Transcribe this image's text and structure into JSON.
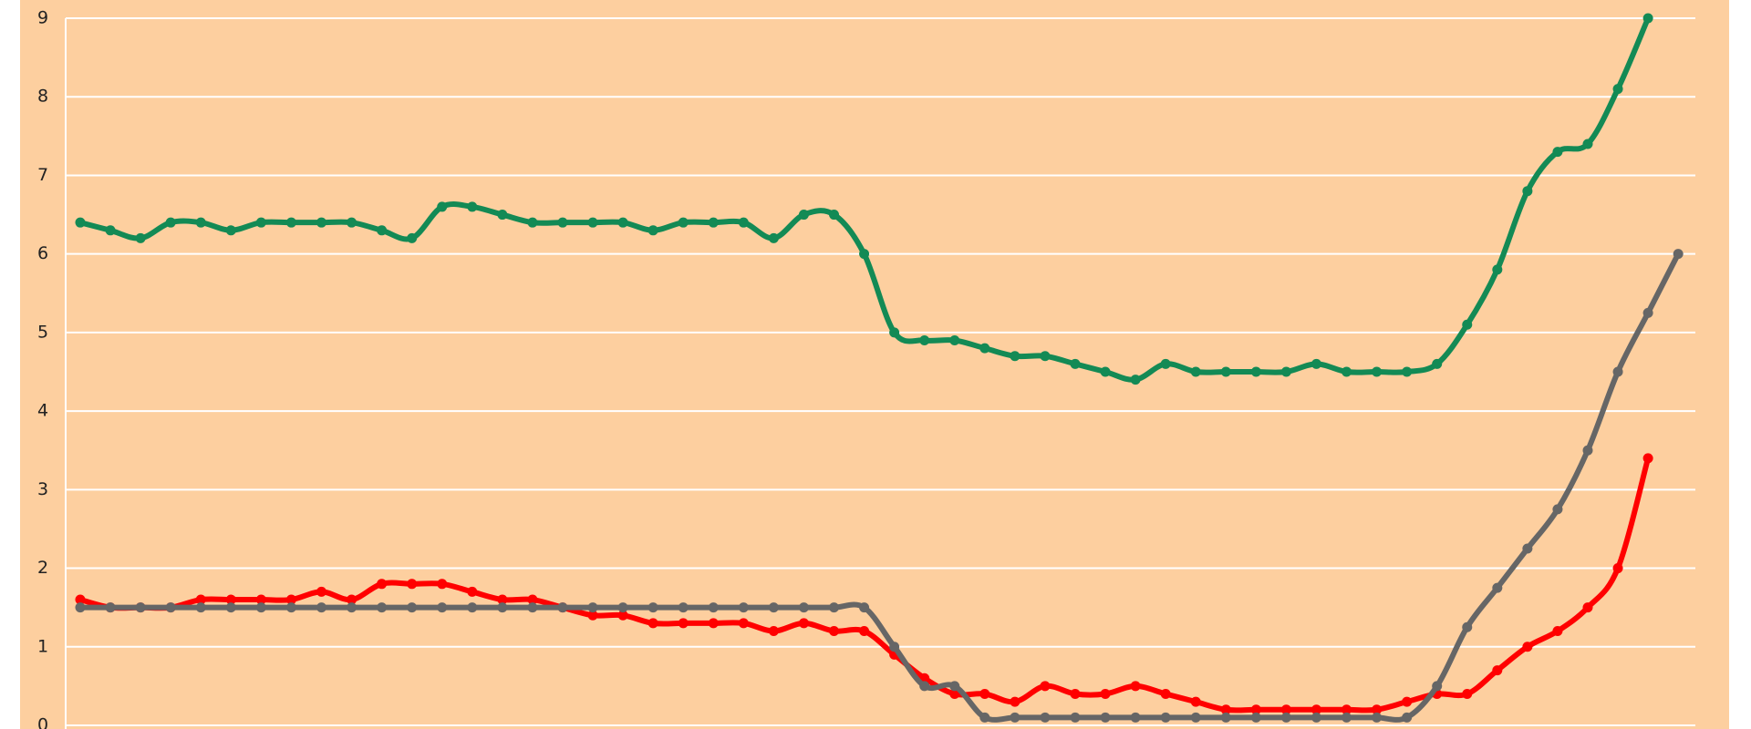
{
  "chart_data": {
    "type": "line",
    "categories": [
      null,
      null,
      null,
      null,
      null,
      null,
      null,
      null,
      null,
      null,
      null,
      null,
      null,
      null,
      null,
      null,
      null,
      null,
      null,
      null,
      null,
      null,
      null,
      null,
      null,
      null,
      null,
      null,
      null,
      null,
      null,
      null,
      null,
      null,
      null,
      null,
      null,
      null,
      null,
      null,
      null,
      null,
      null,
      null,
      null,
      null,
      null,
      null,
      null,
      null,
      null,
      null,
      null,
      null
    ],
    "series": [
      {
        "color": "#138a55",
        "values": [
          6.4,
          6.3,
          6.2,
          6.4,
          6.4,
          6.3,
          6.4,
          6.4,
          6.4,
          6.4,
          6.3,
          6.2,
          6.6,
          6.6,
          6.5,
          6.4,
          6.4,
          6.4,
          6.4,
          6.3,
          6.4,
          6.4,
          6.4,
          6.2,
          6.5,
          6.5,
          6.0,
          5.0,
          4.9,
          4.9,
          4.8,
          4.7,
          4.7,
          4.6,
          4.5,
          4.4,
          4.6,
          4.5,
          4.5,
          4.5,
          4.5,
          4.6,
          4.5,
          4.5,
          4.5,
          4.6,
          5.1,
          5.8,
          6.8,
          7.3,
          7.4,
          8.1,
          9.0,
          null
        ]
      },
      {
        "color": "#ff0000",
        "values": [
          1.6,
          1.5,
          1.5,
          1.5,
          1.6,
          1.6,
          1.6,
          1.6,
          1.7,
          1.6,
          1.8,
          1.8,
          1.8,
          1.7,
          1.6,
          1.6,
          1.5,
          1.4,
          1.4,
          1.3,
          1.3,
          1.3,
          1.3,
          1.2,
          1.3,
          1.2,
          1.2,
          0.9,
          0.6,
          0.4,
          0.4,
          0.3,
          0.5,
          0.4,
          0.4,
          0.5,
          0.4,
          0.3,
          0.2,
          0.2,
          0.2,
          0.2,
          0.2,
          0.2,
          0.3,
          0.4,
          0.4,
          0.7,
          1.0,
          1.2,
          1.5,
          2.0,
          3.4,
          null
        ]
      },
      {
        "color": "#666666",
        "values": [
          1.5,
          1.5,
          1.5,
          1.5,
          1.5,
          1.5,
          1.5,
          1.5,
          1.5,
          1.5,
          1.5,
          1.5,
          1.5,
          1.5,
          1.5,
          1.5,
          1.5,
          1.5,
          1.5,
          1.5,
          1.5,
          1.5,
          1.5,
          1.5,
          1.5,
          1.5,
          1.5,
          1.0,
          0.5,
          0.5,
          0.1,
          0.1,
          0.1,
          0.1,
          0.1,
          0.1,
          0.1,
          0.1,
          0.1,
          0.1,
          0.1,
          0.1,
          0.1,
          0.1,
          0.1,
          0.5,
          1.25,
          1.75,
          2.25,
          2.75,
          3.5,
          4.5,
          5.25,
          6.0
        ]
      }
    ],
    "ylim": [
      0,
      9
    ],
    "yticks": [
      0,
      1,
      2,
      3,
      4,
      5,
      6,
      7,
      8,
      9
    ],
    "grid": true
  }
}
